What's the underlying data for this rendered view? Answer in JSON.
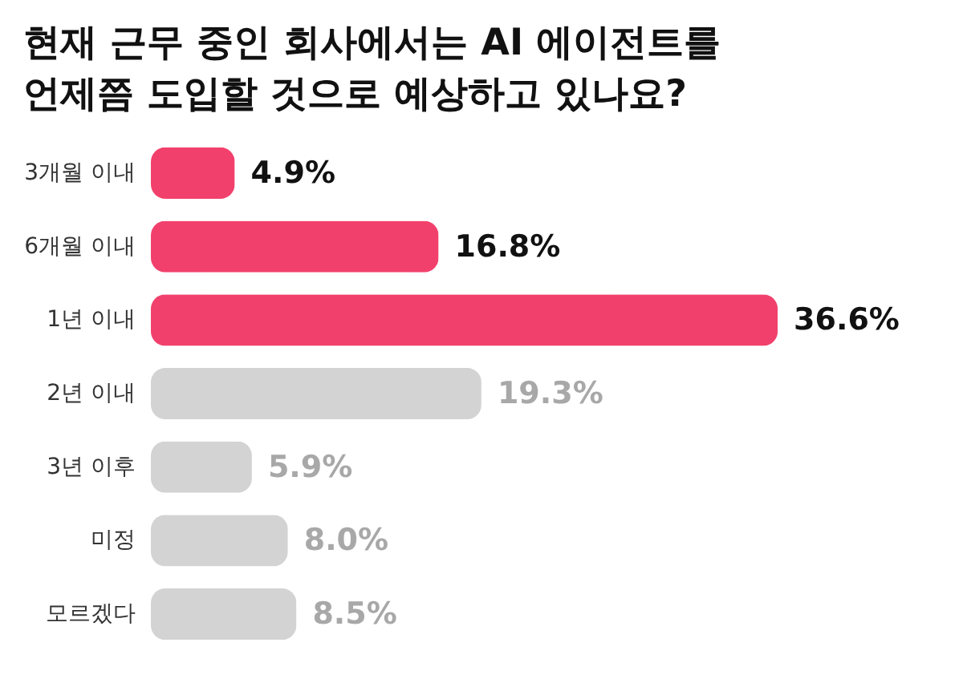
{
  "chart_data": {
    "type": "bar",
    "orientation": "horizontal",
    "title": "현재 근무 중인 회사에서는 AI 에이전트를\n언제쯤 도입할 것으로 예상하고 있나요?",
    "categories": [
      "3개월 이내",
      "6개월 이내",
      "1년 이내",
      "2년 이내",
      "3년 이후",
      "미정",
      "모르겠다"
    ],
    "values": [
      4.9,
      16.8,
      36.6,
      19.3,
      5.9,
      8.0,
      8.5
    ],
    "value_labels": [
      "4.9%",
      "16.8%",
      "36.6%",
      "19.3%",
      "5.9%",
      "8.0%",
      "8.5%"
    ],
    "colors": [
      "#f2406c",
      "#f2406c",
      "#f2406c",
      "#d3d3d3",
      "#d3d3d3",
      "#d3d3d3",
      "#d3d3d3"
    ]
  }
}
